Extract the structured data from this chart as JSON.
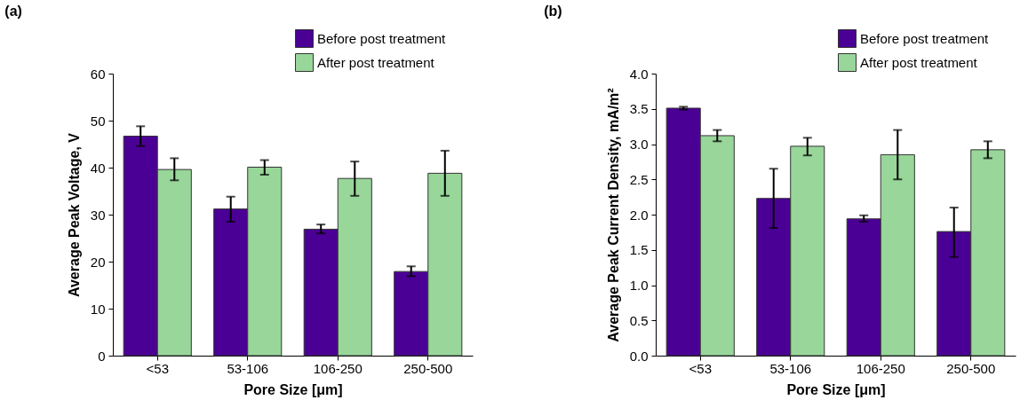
{
  "chart_data": [
    {
      "type": "bar",
      "title": "(a)",
      "xlabel": "Pore Size [μm]",
      "ylabel": "Average Peak Voltage, V",
      "categories": [
        "<53",
        "53-106",
        "106-250",
        "250-500"
      ],
      "series": [
        {
          "name": "Before post treatment",
          "color": "#4b0095",
          "values": [
            46.7,
            31.2,
            26.9,
            17.9
          ],
          "errors": [
            [
              44.6,
              48.8
            ],
            [
              28.5,
              33.8
            ],
            [
              26.0,
              27.9
            ],
            [
              16.9,
              19.0
            ]
          ]
        },
        {
          "name": "After post treatment",
          "color": "#98d69a",
          "values": [
            39.6,
            40.1,
            37.7,
            38.8
          ],
          "errors": [
            [
              37.3,
              42.0
            ],
            [
              38.5,
              41.6
            ],
            [
              34.0,
              41.3
            ],
            [
              34.0,
              43.6
            ]
          ]
        }
      ],
      "ylim": [
        0,
        60
      ],
      "yticks": [
        0,
        10,
        20,
        30,
        40,
        50,
        60
      ],
      "grid": false,
      "legend": "top right"
    },
    {
      "type": "bar",
      "title": "(b)",
      "xlabel": "Pore Size [μm]",
      "ylabel": "Average Peak Current Density, mA/m²",
      "categories": [
        "<53",
        "53-106",
        "106-250",
        "250-500"
      ],
      "series": [
        {
          "name": "Before post treatment",
          "color": "#4b0095",
          "values": [
            3.51,
            2.23,
            1.94,
            1.76
          ],
          "errors": [
            [
              3.49,
              3.53
            ],
            [
              1.81,
              2.65
            ],
            [
              1.9,
              1.99
            ],
            [
              1.4,
              2.1
            ]
          ]
        },
        {
          "name": "After post treatment",
          "color": "#98d69a",
          "values": [
            3.12,
            2.97,
            2.85,
            2.92
          ],
          "errors": [
            [
              3.04,
              3.2
            ],
            [
              2.84,
              3.09
            ],
            [
              2.5,
              3.2
            ],
            [
              2.8,
              3.04
            ]
          ]
        }
      ],
      "ylim": [
        0,
        4
      ],
      "yticks": [
        {
          "value": 0,
          "label": "0.0"
        },
        {
          "value": 0.5,
          "label": "0.5"
        },
        {
          "value": 1,
          "label": "1.0"
        },
        {
          "value": 1.5,
          "label": "1.5"
        },
        {
          "value": 2,
          "label": "2.0"
        },
        {
          "value": 2.5,
          "label": "2.5"
        },
        {
          "value": 3,
          "label": "3.0"
        },
        {
          "value": 3.5,
          "label": "3.5"
        },
        {
          "value": 4,
          "label": "4.0"
        }
      ],
      "grid": false,
      "legend": "top right"
    }
  ]
}
